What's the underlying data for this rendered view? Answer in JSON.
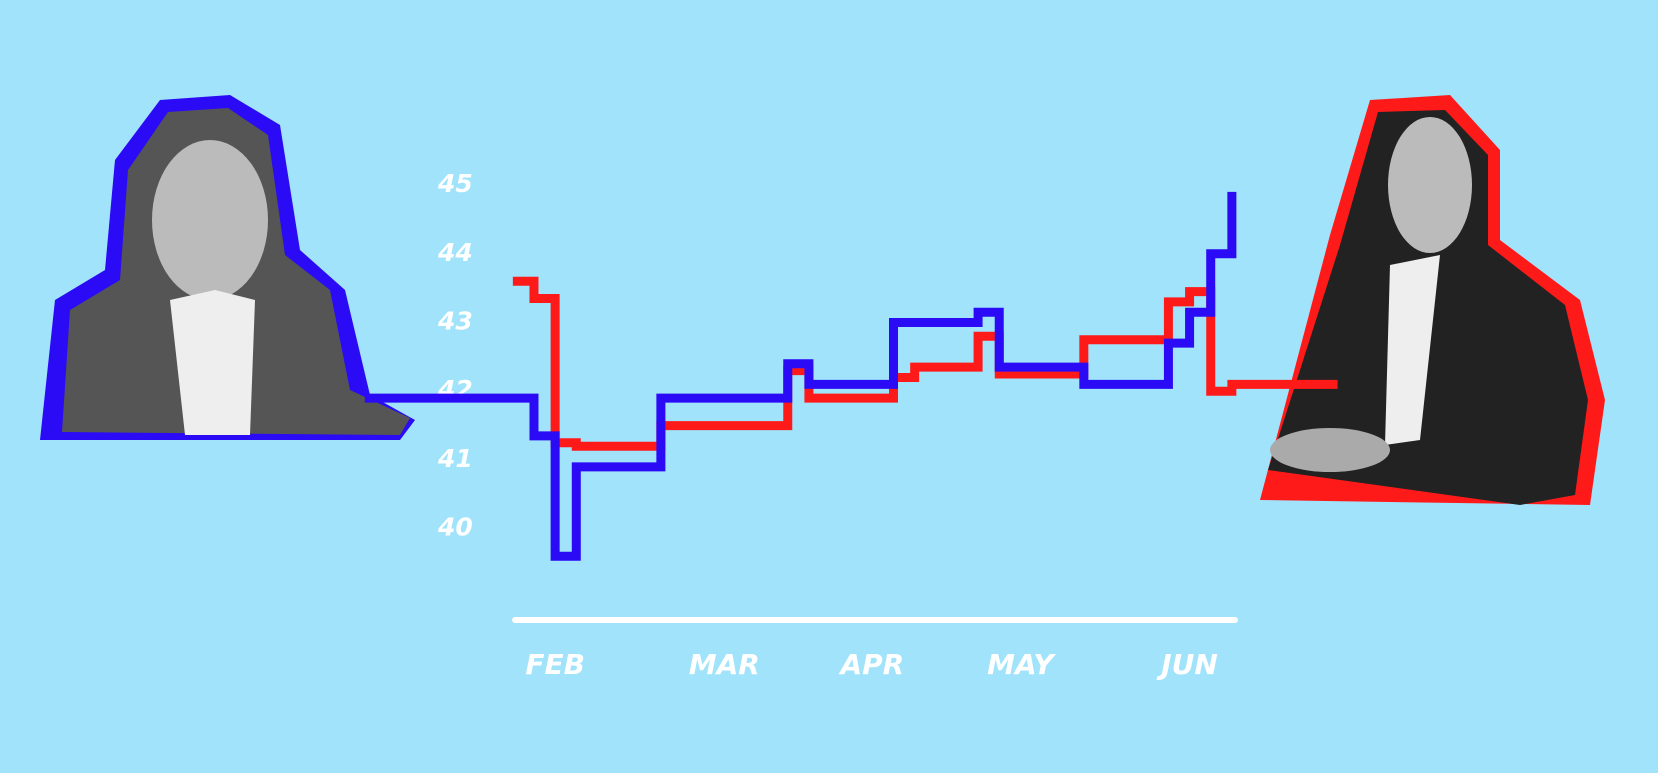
{
  "chart_data": {
    "type": "line",
    "categories": [
      null,
      null,
      null,
      null,
      null,
      null,
      null,
      null,
      null,
      "FEB",
      null,
      null,
      null,
      null,
      null,
      null,
      null,
      "MAR",
      null,
      null,
      null,
      null,
      null,
      null,
      "APR",
      null,
      null,
      null,
      null,
      null,
      null,
      "MAY",
      null,
      null,
      null,
      null,
      null,
      null,
      null,
      "JUN",
      null,
      null,
      null,
      null,
      null,
      null,
      null
    ],
    "series": [
      {
        "color": "#2b0af5",
        "values": [
          41.9,
          41.9,
          41.9,
          41.9,
          41.9,
          41.9,
          41.9,
          41.9,
          41.35,
          39.6,
          40.9,
          40.9,
          40.9,
          40.9,
          41.9,
          41.9,
          41.9,
          41.9,
          41.9,
          41.9,
          42.4,
          42.1,
          42.1,
          42.1,
          42.1,
          43.0,
          43.0,
          43.0,
          43.0,
          43.15,
          42.35,
          42.35,
          42.35,
          42.35,
          42.1,
          42.1,
          42.1,
          42.1,
          42.7,
          43.15,
          44.0,
          44.9,
          null,
          null,
          null,
          null,
          null
        ]
      },
      {
        "color": "#ff1a1a",
        "values": [
          null,
          null,
          null,
          null,
          null,
          null,
          null,
          43.6,
          43.35,
          41.25,
          41.2,
          41.2,
          41.2,
          41.2,
          41.5,
          41.5,
          41.5,
          41.5,
          41.5,
          41.5,
          42.3,
          41.9,
          41.9,
          41.9,
          41.9,
          42.2,
          42.35,
          42.35,
          42.35,
          42.8,
          42.25,
          42.25,
          42.25,
          42.25,
          42.75,
          42.75,
          42.75,
          42.75,
          43.3,
          43.45,
          42.0,
          42.1,
          42.1,
          42.1,
          42.1,
          42.1,
          42.1
        ]
      }
    ],
    "ylim": [
      40,
      45
    ],
    "yticks": [
      40,
      41,
      42,
      43,
      44,
      45
    ],
    "step": true
  }
}
